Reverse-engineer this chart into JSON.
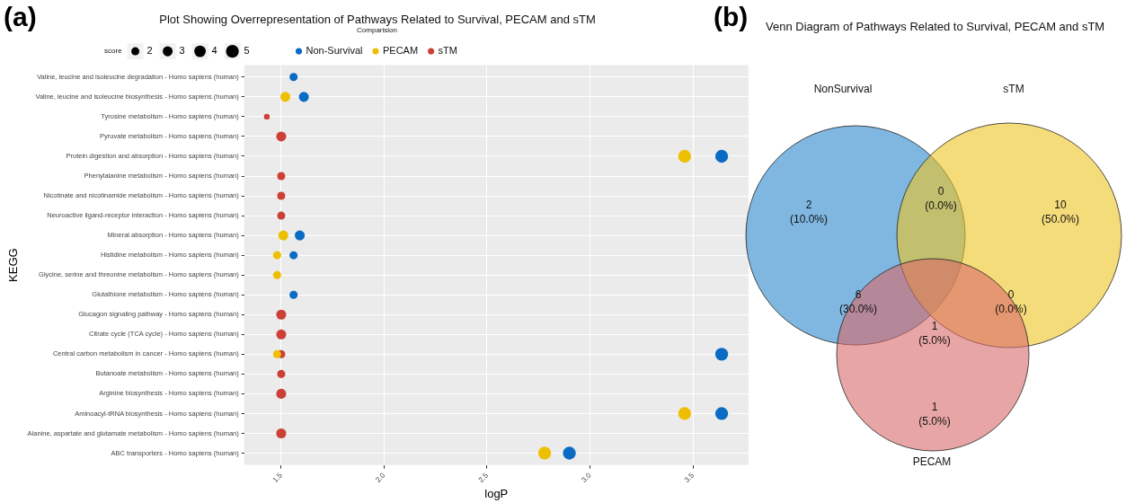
{
  "chart_data": [
    {
      "type": "bubble",
      "title": "Plot Showing Overrepresentation of Pathways Related to Survival, PECAM and sTM",
      "xlabel": "logP",
      "ylabel": "KEGG",
      "legend_title": "Comparision",
      "annotations": [
        "(a)",
        "score"
      ],
      "orientation": "horizontal",
      "legend": "top",
      "grid": true,
      "size_legend": [
        2,
        3,
        4,
        5
      ],
      "categories": [
        "Valine, leucine and isoleucine degradation - Homo sapiens (human)",
        "Valine, leucine and isoleucine biosynthesis - Homo sapiens (human)",
        "Tyrosine metabolism - Homo sapiens (human)",
        "Pyruvate metabolism - Homo sapiens (human)",
        "Protein digestion and absorption - Homo sapiens (human)",
        "Phenylalanine metabolism - Homo sapiens (human)",
        "Nicotinate and nicotinamide metabolism - Homo sapiens (human)",
        "Neuroactive ligand-receptor interaction - Homo sapiens (human)",
        "Mineral absorption - Homo sapiens (human)",
        "Histidine metabolism - Homo sapiens (human)",
        "Glycine, serine and threonine metabolism - Homo sapiens (human)",
        "Glutathione metabolism - Homo sapiens (human)",
        "Glucagon signaling pathway - Homo sapiens (human)",
        "Citrate cycle (TCA cycle) - Homo sapiens (human)",
        "Central carbon metabolism in cancer - Homo sapiens (human)",
        "Butanoate metabolism - Homo sapiens (human)",
        "Arginine biosynthesis - Homo sapiens (human)",
        "Aminoacyl-tRNA biosynthesis - Homo sapiens (human)",
        "Alanine, aspartate and glutamate metabolism - Homo sapiens (human)",
        "ABC transporters - Homo sapiens (human)"
      ],
      "series": [
        {
          "name": "Non-Survival",
          "color": "#0a6bc4",
          "values": [
            1.56,
            1.61,
            null,
            null,
            3.64,
            null,
            null,
            null,
            1.59,
            1.56,
            null,
            1.56,
            null,
            null,
            3.64,
            null,
            null,
            3.64,
            null,
            2.9
          ],
          "sizes": [
            2,
            3,
            null,
            null,
            5,
            null,
            null,
            null,
            3,
            2,
            null,
            2,
            null,
            null,
            5,
            null,
            null,
            5,
            null,
            5
          ]
        },
        {
          "name": "PECAM",
          "color": "#eebf00",
          "values": [
            null,
            1.52,
            null,
            null,
            3.46,
            null,
            null,
            null,
            1.51,
            1.48,
            1.48,
            null,
            null,
            null,
            1.48,
            null,
            null,
            3.46,
            null,
            2.78
          ],
          "sizes": [
            null,
            3,
            null,
            null,
            5,
            null,
            null,
            null,
            3,
            2,
            2,
            null,
            null,
            null,
            2,
            null,
            null,
            5,
            null,
            5
          ]
        },
        {
          "name": "sTM",
          "color": "#cc4036",
          "values": [
            null,
            null,
            1.43,
            1.5,
            null,
            1.5,
            1.5,
            1.5,
            null,
            null,
            null,
            null,
            1.5,
            1.5,
            1.5,
            1.5,
            1.5,
            null,
            1.5,
            null
          ],
          "sizes": [
            null,
            null,
            1,
            3,
            null,
            2,
            2,
            2,
            null,
            null,
            null,
            null,
            3,
            3,
            2,
            2,
            3,
            null,
            3,
            null
          ]
        }
      ],
      "xlim": [
        1.32,
        3.77
      ],
      "xticks": [
        {
          "value": 1.5,
          "label": "1.5"
        },
        {
          "value": 2,
          "label": "2.0"
        },
        {
          "value": 2.5,
          "label": "2.5"
        },
        {
          "value": 3,
          "label": "3.0"
        },
        {
          "value": 3.5,
          "label": "3.5"
        }
      ]
    },
    {
      "type": "other",
      "title": "Venn Diagram of Pathways Related to Survival, PECAM and sTM",
      "annotations": [
        "(b)",
        "NonSurvival",
        "sTM",
        "PECAM",
        "2\n(10.0%)",
        "0\n(0.0%)",
        "10\n(50.0%)",
        "6\n(30.0%)",
        "1\n(5.0%)",
        "0\n(0.0%)",
        "1\n(5.0%)"
      ]
    }
  ]
}
